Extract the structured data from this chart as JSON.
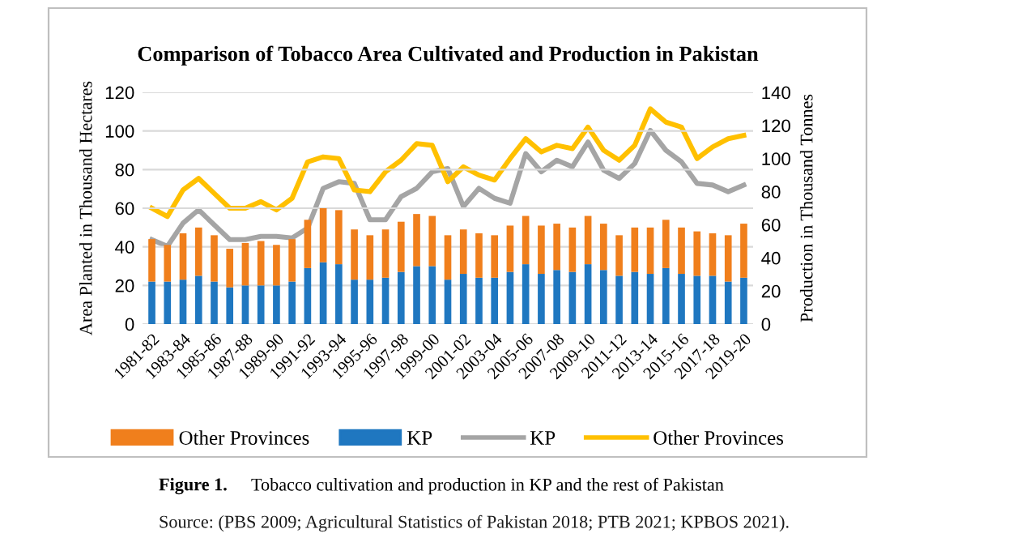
{
  "chart_data": {
    "type": "bar",
    "stacked": true,
    "title": "Comparison of Tobacco Area Cultivated and Production in Pakistan",
    "ylabel": "Area Planted in Thousand Hectares",
    "y2label": "Production in Thousand Tonnes",
    "categories": [
      "1981-82",
      null,
      "1983-84",
      null,
      "1985-86",
      null,
      "1987-88",
      null,
      "1989-90",
      null,
      "1991-92",
      null,
      "1993-94",
      null,
      "1995-96",
      null,
      "1997-98",
      null,
      "1999-00",
      null,
      "2001-02",
      null,
      "2003-04",
      null,
      "2005-06",
      null,
      "2007-08",
      null,
      "2009-10",
      null,
      "2011-12",
      null,
      "2013-14",
      null,
      "2015-16",
      null,
      "2017-18",
      null,
      "2019-20"
    ],
    "series": [
      {
        "name": "KP",
        "color": "#1f77c0",
        "values": [
          22,
          22,
          23,
          25,
          22,
          19,
          20,
          20,
          20,
          22,
          29,
          32,
          31,
          23,
          23,
          24,
          27,
          30,
          30,
          23,
          26,
          24,
          24,
          27,
          31,
          26,
          28,
          27,
          31,
          28,
          25,
          27,
          26,
          29,
          26,
          25,
          25,
          22,
          24
        ]
      },
      {
        "name": "Other Provinces",
        "color": "#f07f1c",
        "values": [
          22,
          19,
          24,
          25,
          24,
          20,
          22,
          23,
          21,
          22,
          25,
          28,
          28,
          26,
          23,
          25,
          26,
          27,
          26,
          23,
          23,
          23,
          22,
          24,
          25,
          25,
          24,
          23,
          25,
          24,
          21,
          23,
          24,
          25,
          24,
          23,
          22,
          24,
          28
        ]
      },
      {
        "name": "KP",
        "type": "line",
        "axis": "y2",
        "color": "#a5a5a5",
        "values": [
          51,
          47,
          61,
          69,
          60,
          51,
          51,
          53,
          53,
          52,
          58,
          82,
          86,
          85,
          63,
          63,
          77,
          82,
          92,
          94,
          71,
          82,
          76,
          73,
          103,
          92,
          99,
          95,
          110,
          93,
          88,
          97,
          117,
          105,
          98,
          85,
          84,
          80,
          84
        ]
      },
      {
        "name": "Other Provinces",
        "type": "line",
        "axis": "y2",
        "color": "#ffc000",
        "values": [
          70,
          65,
          81,
          88,
          79,
          70,
          70,
          74,
          69,
          76,
          98,
          101,
          100,
          81,
          80,
          92,
          99,
          109,
          108,
          86,
          95,
          90,
          87,
          100,
          112,
          104,
          108,
          106,
          119,
          105,
          99,
          108,
          130,
          122,
          119,
          100,
          107,
          112,
          114
        ]
      }
    ],
    "ylim": [
      0,
      120
    ],
    "yticks": [
      0,
      20,
      40,
      60,
      80,
      100,
      120
    ],
    "y2lim": [
      0,
      140
    ],
    "y2ticks": [
      0,
      20,
      40,
      60,
      80,
      100,
      120,
      140
    ],
    "grid": "y",
    "legend": "bottom",
    "annotations": [
      "Figure 1.",
      "Tobacco cultivation and production in KP and the rest of Pakistan",
      "Source: (PBS 2009; Agricultural Statistics of Pakistan 2018; PTB 2021; KPBOS 2021)."
    ]
  }
}
